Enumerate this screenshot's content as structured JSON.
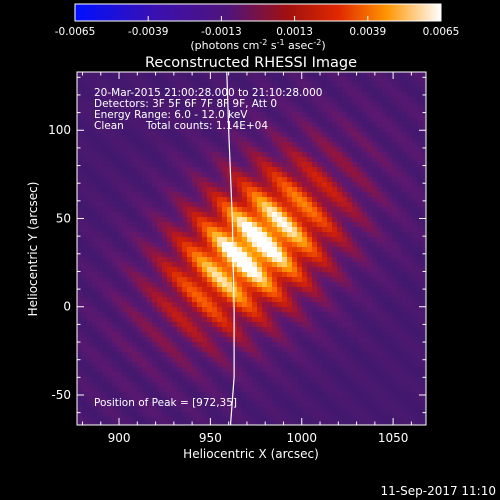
{
  "colorbar": {
    "ticks": [
      "-0.0065",
      "-0.0039",
      "-0.0013",
      "0.0013",
      "0.0039",
      "0.0065"
    ],
    "range": [
      -0.0065,
      0.0065
    ],
    "unit_text_a": "(photons cm",
    "unit_sup_a": "-2",
    "unit_text_b": " s",
    "unit_sup_b": "-1",
    "unit_text_c": " asec",
    "unit_sup_c": "-2",
    "unit_text_d": ")"
  },
  "info": {
    "time_range": "20-Mar-2015 21:00:28.000 to 21:10:28.000",
    "detectors": "Detectors: 3F 5F 6F 7F 8F 9F, Att 0",
    "energy": "Energy Range: 6.0 - 12.0 keV",
    "clean_label": "Clean",
    "counts": "Total counts: 1.14E+04",
    "peak": "Position of Peak = [972,35]"
  },
  "footer": {
    "date": "11-Sep-2017 11:10"
  },
  "chart_data": {
    "type": "heatmap",
    "title": "Reconstructed RHESSI Image",
    "xlabel": "Heliocentric X (arcsec)",
    "ylabel": "Heliocentric Y (arcsec)",
    "xlim": [
      877,
      1068
    ],
    "ylim": [
      -67,
      133
    ],
    "xticks": [
      900,
      950,
      1000,
      1050
    ],
    "yticks": [
      -50,
      0,
      50,
      100
    ],
    "peak": {
      "x": 972,
      "y": 35
    },
    "colormap": "hot",
    "limb_curve": [
      [
        959,
        133
      ],
      [
        960,
        100
      ],
      [
        962,
        50
      ],
      [
        963,
        0
      ],
      [
        963,
        -40
      ],
      [
        961,
        -67
      ]
    ]
  }
}
